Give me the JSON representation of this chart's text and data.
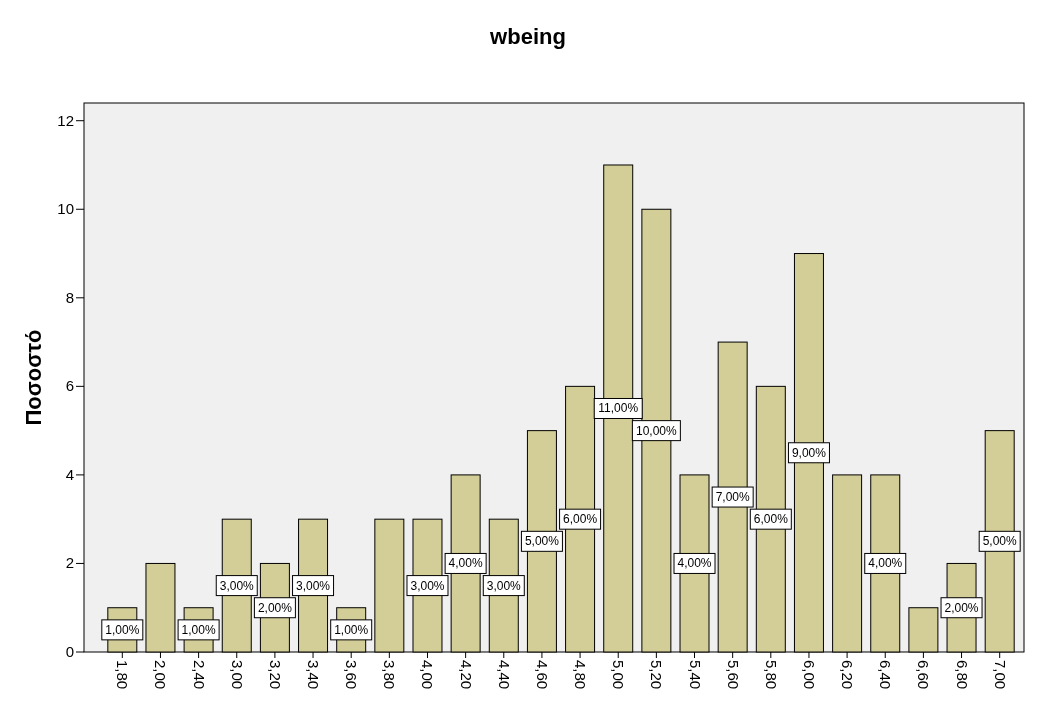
{
  "chart_data": {
    "type": "bar",
    "title": "wbeing",
    "ylabel": "Ποσοστό",
    "categories": [
      "1,80",
      "2,00",
      "2,40",
      "3,00",
      "3,20",
      "3,40",
      "3,60",
      "3,80",
      "4,00",
      "4,20",
      "4,40",
      "4,60",
      "4,80",
      "5,00",
      "5,20",
      "5,40",
      "5,60",
      "5,80",
      "6,00",
      "6,20",
      "6,40",
      "6,60",
      "6,80",
      "7,00"
    ],
    "values": [
      1,
      2,
      1,
      3,
      2,
      3,
      1,
      3,
      3,
      4,
      3,
      5,
      6,
      11,
      10,
      4,
      7,
      6,
      9,
      4,
      4,
      1,
      2,
      5
    ],
    "value_labels": [
      "1,00%",
      null,
      "1,00%",
      "3,00%",
      "2,00%",
      "3,00%",
      "1,00%",
      null,
      "3,00%",
      "4,00%",
      "3,00%",
      "5,00%",
      "6,00%",
      "11,00%",
      "10,00%",
      "4,00%",
      "7,00%",
      "6,00%",
      "9,00%",
      null,
      "4,00%",
      null,
      "2,00%",
      "5,00%"
    ],
    "color": "#d3ce97",
    "ylim": [
      0,
      12.4
    ],
    "yticks": [
      0,
      2,
      4,
      6,
      8,
      10,
      12
    ],
    "grid": false
  }
}
